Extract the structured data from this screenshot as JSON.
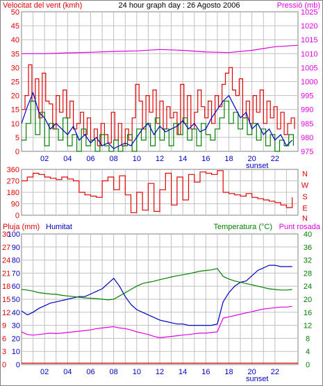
{
  "colors": {
    "frame": "#808080",
    "grid": "#c0c0c0",
    "background": "#ffffff",
    "wind": "#e00000",
    "gust_green": "#008000",
    "wind_blue": "#0000c0",
    "pressure": "#e000e0",
    "direction": "#e00000",
    "humidity": "#0000c0",
    "temperature": "#008000",
    "dewpoint": "#e000e0",
    "rain": "#e00000",
    "rain_axis": "#e00000",
    "text_dark": "#000000"
  },
  "chart_data": [
    {
      "type": "line",
      "name_panel": "wind-pressure",
      "title": "24 hour graph day : 26 Agosto 2006",
      "left_label": "Velocitat del vent (kmh)",
      "right_label": "Pressió (mb)",
      "sunset_label": "sunset",
      "x_ticks": [
        "02",
        "04",
        "06",
        "08",
        "10",
        "12",
        "14",
        "16",
        "18",
        "20",
        "22"
      ],
      "y_left_ticks": [
        0,
        5,
        10,
        15,
        20,
        25,
        30,
        35,
        40,
        45,
        50
      ],
      "y_right_ticks": [
        975,
        980,
        985,
        990,
        995,
        1000,
        1005,
        1010,
        1015,
        1020,
        1025
      ],
      "ylim_left": [
        0,
        50
      ],
      "ylim_right": [
        975,
        1025
      ],
      "grid": true,
      "pressure": {
        "x": [
          0,
          2,
          4,
          6,
          8,
          10,
          12,
          14,
          16,
          18,
          20,
          22,
          24
        ],
        "y": [
          1010,
          1010,
          1010.3,
          1010.5,
          1010.8,
          1011,
          1011.5,
          1011.2,
          1010.6,
          1010.4,
          1011.2,
          1012.5,
          1013
        ]
      },
      "wind_red": {
        "x": [
          0,
          0.3,
          0.6,
          0.9,
          1.2,
          1.5,
          1.8,
          2.1,
          2.4,
          2.7,
          3,
          3.3,
          3.6,
          3.9,
          4.2,
          4.5,
          4.8,
          5.1,
          5.4,
          5.7,
          6,
          6.3,
          6.6,
          6.9,
          7.2,
          7.5,
          7.8,
          8.1,
          8.4,
          8.7,
          9,
          9.3,
          9.6,
          9.9,
          10.2,
          10.5,
          10.8,
          11.1,
          11.4,
          11.7,
          12,
          12.3,
          12.6,
          12.9,
          13.2,
          13.5,
          13.8,
          14.1,
          14.4,
          14.7,
          15,
          15.3,
          15.6,
          15.9,
          16.2,
          16.5,
          16.8,
          17.1,
          17.4,
          17.7,
          18,
          18.3,
          18.6,
          18.9,
          19.2,
          19.5,
          19.8,
          20.1,
          20.4,
          20.7,
          21,
          21.3,
          21.6,
          21.9,
          22.2,
          22.5,
          22.8,
          23.1,
          23.4,
          23.7
        ],
        "y": [
          15,
          20,
          31,
          18,
          26,
          12,
          28,
          18,
          17,
          8,
          20,
          14,
          22,
          12,
          18,
          8,
          10,
          14,
          6,
          12,
          4,
          8,
          2,
          10,
          6,
          3,
          14,
          4,
          10,
          2,
          8,
          4,
          12,
          24,
          18,
          8,
          20,
          14,
          22,
          10,
          18,
          8,
          16,
          12,
          14,
          6,
          24,
          10,
          20,
          8,
          14,
          22,
          16,
          12,
          18,
          10,
          20,
          16,
          24,
          28,
          30,
          22,
          20,
          26,
          12,
          18,
          10,
          20,
          14,
          22,
          10,
          18,
          12,
          16,
          8,
          14,
          6,
          10,
          12,
          8
        ]
      },
      "wind_green": {
        "x": [
          0,
          0.4,
          0.8,
          1.2,
          1.6,
          2,
          2.4,
          2.8,
          3.2,
          3.6,
          4,
          4.4,
          4.8,
          5.2,
          5.6,
          6,
          6.4,
          6.8,
          7.2,
          7.6,
          8,
          8.4,
          8.8,
          9.2,
          9.6,
          10,
          10.4,
          10.8,
          11.2,
          11.6,
          12,
          12.4,
          12.8,
          13.2,
          13.6,
          14,
          14.4,
          14.8,
          15.2,
          15.6,
          16,
          16.4,
          16.8,
          17.2,
          17.6,
          18,
          18.4,
          18.8,
          19.2,
          19.6,
          20,
          20.4,
          20.8,
          21.2,
          21.6,
          22,
          22.4,
          22.8,
          23.2,
          23.6
        ],
        "y": [
          4,
          10,
          18,
          6,
          14,
          2,
          10,
          8,
          4,
          12,
          2,
          6,
          0,
          8,
          2,
          4,
          0,
          6,
          2,
          0,
          4,
          0,
          2,
          6,
          0,
          8,
          4,
          10,
          2,
          12,
          4,
          8,
          2,
          10,
          6,
          12,
          4,
          8,
          2,
          10,
          6,
          4,
          8,
          12,
          18,
          10,
          14,
          8,
          12,
          6,
          10,
          4,
          8,
          2,
          6,
          0,
          4,
          2,
          6,
          2
        ]
      },
      "wind_blue": {
        "x": [
          0,
          0.5,
          1,
          1.5,
          2,
          2.5,
          3,
          3.5,
          4,
          4.5,
          5,
          5.5,
          6,
          6.5,
          7,
          7.5,
          8,
          8.5,
          9,
          9.5,
          10,
          10.5,
          11,
          11.5,
          12,
          12.5,
          13,
          13.5,
          14,
          14.5,
          15,
          15.5,
          16,
          16.5,
          17,
          17.5,
          18,
          18.5,
          19,
          19.5,
          20,
          20.5,
          21,
          21.5,
          22,
          22.5,
          23,
          23.5
        ],
        "y": [
          10,
          16,
          21,
          14,
          12,
          8,
          10,
          8,
          6,
          9,
          4,
          6,
          3,
          5,
          2,
          3,
          1,
          2,
          3,
          2,
          5,
          8,
          10,
          6,
          9,
          7,
          8,
          9,
          11,
          8,
          10,
          7,
          8,
          12,
          15,
          18,
          20,
          16,
          12,
          14,
          8,
          10,
          6,
          8,
          4,
          6,
          2,
          4
        ]
      },
      "legend": "none"
    },
    {
      "type": "line",
      "name_panel": "direction",
      "y_left_ticks": [
        0,
        90,
        180,
        270,
        360
      ],
      "y_right_labels": [
        "N",
        "W",
        "S",
        "E",
        "N"
      ],
      "ylim": [
        0,
        360
      ],
      "direction": {
        "x": [
          0,
          0.5,
          1,
          1.5,
          2,
          2.5,
          3,
          3.5,
          4,
          4.5,
          5,
          5.5,
          6,
          6.5,
          7,
          7.5,
          8,
          8.5,
          9,
          9.5,
          10,
          10.5,
          11,
          11.5,
          12,
          12.5,
          13,
          13.5,
          14,
          14.5,
          15,
          15.5,
          16,
          16.5,
          17,
          17.5,
          18,
          18.5,
          19,
          19.5,
          20,
          20.5,
          21,
          21.5,
          22,
          22.5,
          23,
          23.5
        ],
        "y": [
          270,
          300,
          330,
          320,
          300,
          290,
          280,
          300,
          285,
          270,
          180,
          160,
          150,
          140,
          270,
          300,
          200,
          310,
          160,
          20,
          180,
          40,
          250,
          30,
          200,
          330,
          80,
          300,
          120,
          320,
          260,
          340,
          330,
          320,
          350,
          180,
          170,
          160,
          150,
          170,
          140,
          130,
          120,
          110,
          100,
          80,
          60,
          140
        ]
      }
    },
    {
      "type": "line",
      "name_panel": "humidity-temperature",
      "left_label_rain": "Pluja (mm)",
      "left_label_hum": "Humitat",
      "right_label": "Temperatura (°C)",
      "right_label_2": "Punt rosada",
      "sunset_label": "sunset",
      "x_ticks": [
        "02",
        "04",
        "06",
        "08",
        "10",
        "12",
        "14",
        "16",
        "18",
        "20",
        "22"
      ],
      "y_rain_ticks": [
        0,
        3,
        6,
        9,
        12,
        15,
        18,
        21,
        24,
        27,
        30
      ],
      "y_hum_ticks": [
        0,
        10,
        20,
        30,
        40,
        50,
        60,
        70,
        80,
        90,
        100
      ],
      "y_right_ticks": [
        0,
        4,
        8,
        12,
        16,
        20,
        24,
        28,
        32,
        36,
        40
      ],
      "ylim_hum": [
        0,
        100
      ],
      "ylim_temp": [
        0,
        40
      ],
      "humidity": {
        "x": [
          0,
          0.5,
          1,
          1.5,
          2,
          2.5,
          3,
          3.5,
          4,
          4.5,
          5,
          5.5,
          6,
          6.5,
          7,
          7.5,
          8,
          8.5,
          9,
          9.5,
          10,
          10.5,
          11,
          11.5,
          12,
          12.5,
          13,
          13.5,
          14,
          14.5,
          15,
          15.5,
          16,
          16.5,
          17,
          17.5,
          18,
          18.5,
          19,
          19.5,
          20,
          20.5,
          21,
          21.5,
          22,
          22.5,
          23,
          23.5
        ],
        "y": [
          41,
          38,
          40,
          43,
          45,
          47,
          48,
          49,
          50,
          51,
          52,
          52,
          54,
          56,
          58,
          62,
          66,
          60,
          52,
          46,
          42,
          40,
          38,
          36,
          34,
          33,
          32,
          31,
          31,
          30,
          30,
          30,
          30,
          30,
          31,
          48,
          55,
          60,
          63,
          64,
          68,
          72,
          74,
          76,
          76,
          75,
          75,
          75
        ]
      },
      "temperature": {
        "x": [
          0,
          0.5,
          1,
          1.5,
          2,
          2.5,
          3,
          3.5,
          4,
          4.5,
          5,
          5.5,
          6,
          6.5,
          7,
          7.5,
          8,
          8.5,
          9,
          9.5,
          10,
          10.5,
          11,
          11.5,
          12,
          12.5,
          13,
          13.5,
          14,
          14.5,
          15,
          15.5,
          16,
          16.5,
          17,
          17.5,
          18,
          18.5,
          19,
          19.5,
          20,
          20.5,
          21,
          21.5,
          22,
          22.5,
          23,
          23.5
        ],
        "y": [
          23,
          22.8,
          22.5,
          22,
          21.8,
          21.6,
          21.5,
          21.2,
          21,
          20.8,
          20.6,
          20.4,
          20.3,
          20.2,
          20,
          19.8,
          20,
          21,
          22,
          23,
          24,
          24.8,
          25.2,
          25.5,
          26,
          26.4,
          26.8,
          27.2,
          27.5,
          27.8,
          28.2,
          28.6,
          28.8,
          29,
          29.4,
          27,
          26.2,
          25.6,
          25.2,
          24.8,
          24.4,
          24,
          23.6,
          23.2,
          23,
          22.8,
          22.8,
          23
        ]
      },
      "dewpoint": {
        "x": [
          0,
          0.5,
          1,
          1.5,
          2,
          2.5,
          3,
          3.5,
          4,
          4.5,
          5,
          5.5,
          6,
          6.5,
          7,
          7.5,
          8,
          8.5,
          9,
          9.5,
          10,
          10.5,
          11,
          11.5,
          12,
          12.5,
          13,
          13.5,
          14,
          14.5,
          15,
          15.5,
          16,
          16.5,
          17,
          17.5,
          18,
          18.5,
          19,
          19.5,
          20,
          20.5,
          21,
          21.5,
          22,
          22.5,
          23,
          23.5
        ],
        "y": [
          10,
          9.2,
          9,
          9.2,
          9.4,
          9.6,
          9.5,
          9.6,
          9.8,
          10,
          10.2,
          10.4,
          10.6,
          11,
          11.2,
          11.4,
          11.6,
          11.2,
          11,
          10.6,
          10,
          9.6,
          9.2,
          8.6,
          8.2,
          8.4,
          8.6,
          8.8,
          9,
          9.2,
          9.4,
          9.6,
          9.6,
          9.8,
          10,
          14.2,
          14.6,
          15,
          15.4,
          15.8,
          16.2,
          16.6,
          17,
          17.2,
          17.4,
          17.6,
          17.6,
          17.8
        ]
      },
      "rain": {
        "x": [
          0,
          24
        ],
        "y": [
          0.3,
          0.3
        ]
      },
      "legend": "none"
    }
  ]
}
